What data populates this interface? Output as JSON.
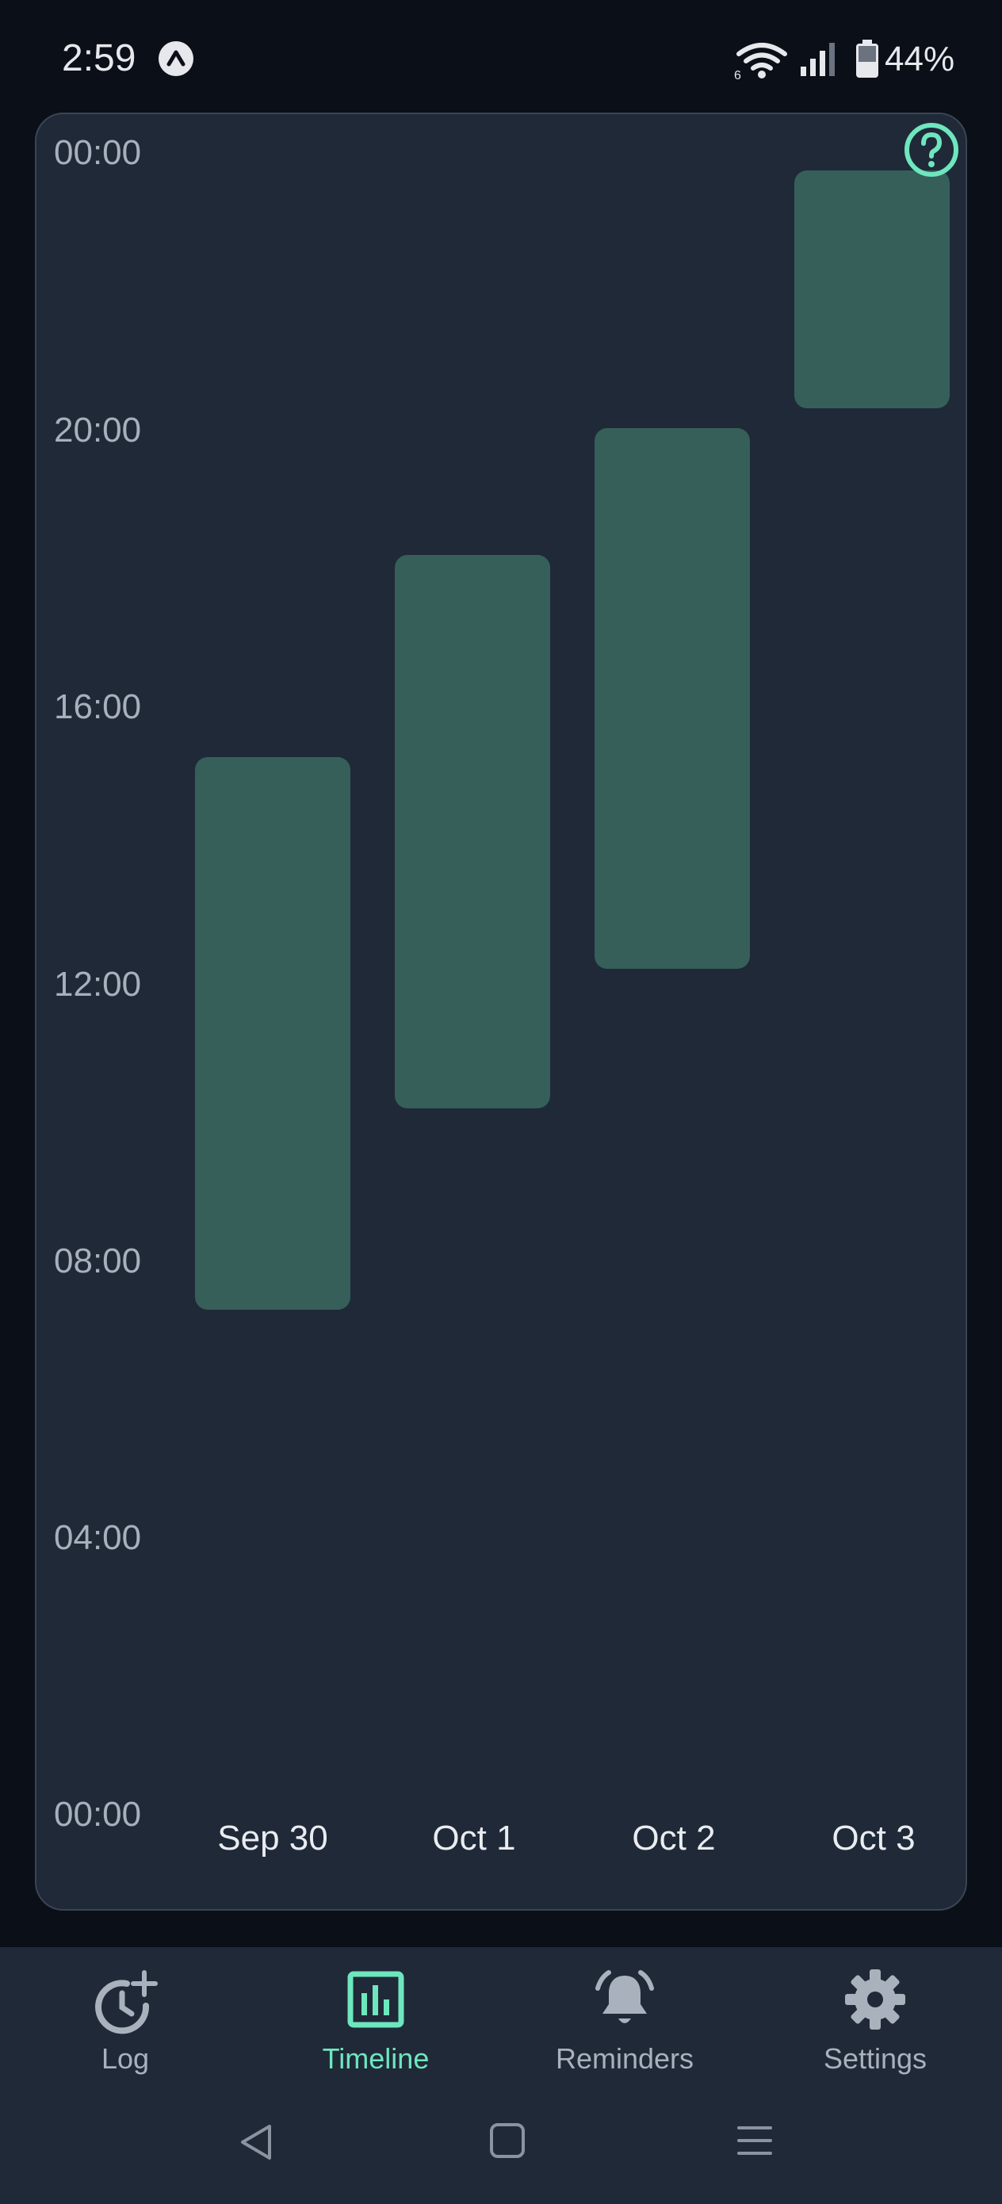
{
  "status_bar": {
    "time": "2:59",
    "battery": "44%",
    "network_badge": "6"
  },
  "chart": {
    "y_ticks": [
      "00:00",
      "20:00",
      "16:00",
      "12:00",
      "08:00",
      "04:00",
      "00:00"
    ],
    "help_icon": "help-icon"
  },
  "chart_data": {
    "type": "bar",
    "categories": [
      "Sep 30",
      "Oct 1",
      "Oct 2",
      "Oct 3"
    ],
    "ranges": [
      {
        "start": "07:16",
        "end": "15:14"
      },
      {
        "start": "10:10",
        "end": "18:09"
      },
      {
        "start": "12:11",
        "end": "19:59"
      },
      {
        "start": "20:16",
        "end": "23:42"
      }
    ],
    "ylim": [
      "00:00",
      "24:00"
    ],
    "yticks": [
      "00:00",
      "04:00",
      "08:00",
      "12:00",
      "16:00",
      "20:00",
      "00:00"
    ],
    "xlabel": "",
    "ylabel": "",
    "bar_color": "#365f5a"
  },
  "nav": {
    "items": [
      {
        "label": "Log",
        "icon": "clock-plus-icon"
      },
      {
        "label": "Timeline",
        "icon": "bar-chart-icon"
      },
      {
        "label": "Reminders",
        "icon": "bell-icon"
      },
      {
        "label": "Settings",
        "icon": "gear-icon"
      }
    ],
    "active_color": "#6ee6be"
  },
  "system_nav": {
    "icons": [
      "back-icon",
      "home-icon",
      "recents-icon"
    ]
  }
}
